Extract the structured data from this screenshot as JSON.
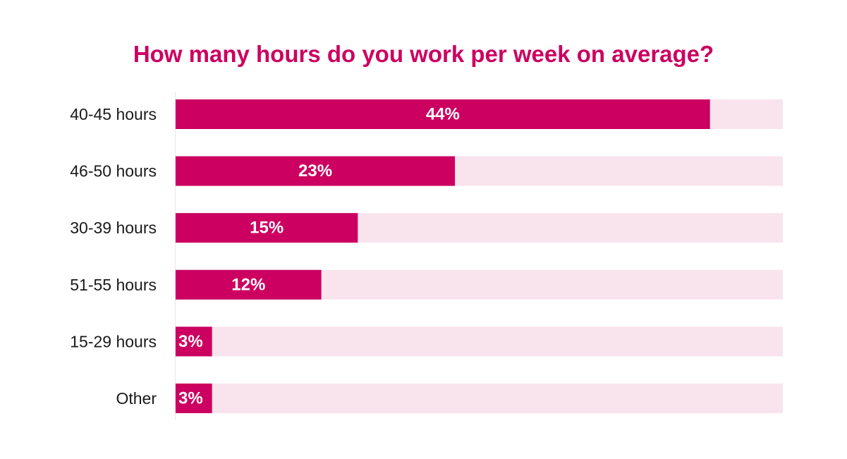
{
  "colors": {
    "title": "#cc0060",
    "bar": "#cc0060",
    "track": "#f9e4ed",
    "axis": "#e6e6e6",
    "category_text": "#1a1a1a",
    "value_text": "#ffffff"
  },
  "chart_data": {
    "type": "bar",
    "orientation": "horizontal",
    "title": "How many hours do you work per week on average?",
    "categories": [
      "40-45 hours",
      "46-50 hours",
      "30-39 hours",
      "51-55 hours",
      "15-29 hours",
      "Other"
    ],
    "values": [
      44,
      23,
      15,
      12,
      3,
      3
    ],
    "value_labels": [
      "44%",
      "23%",
      "15%",
      "12%",
      "3%",
      "3%"
    ],
    "unit": "%",
    "xlim": [
      0,
      50
    ],
    "grid": false,
    "legend": "none"
  }
}
